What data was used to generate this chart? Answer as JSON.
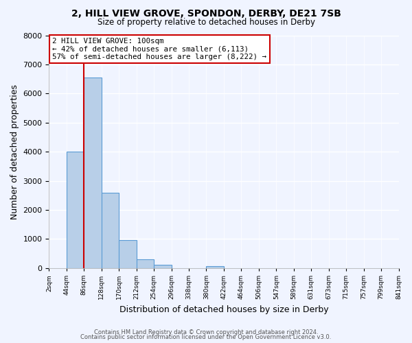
{
  "title1": "2, HILL VIEW GROVE, SPONDON, DERBY, DE21 7SB",
  "title2": "Size of property relative to detached houses in Derby",
  "xlabel": "Distribution of detached houses by size in Derby",
  "ylabel": "Number of detached properties",
  "bar_values": [
    0,
    4000,
    6550,
    2600,
    950,
    310,
    110,
    0,
    0,
    70,
    0,
    0,
    0,
    0,
    0,
    0,
    0,
    0,
    0,
    0
  ],
  "bar_color": "#b8cfe8",
  "bar_edge_color": "#5b9bd5",
  "vline_x_bin": 2,
  "vline_color": "#cc0000",
  "annotation_text": "2 HILL VIEW GROVE: 100sqm\n← 42% of detached houses are smaller (6,113)\n57% of semi-detached houses are larger (8,222) →",
  "annotation_box_color": "#ffffff",
  "annotation_box_edge": "#cc0000",
  "ylim": [
    0,
    8000
  ],
  "background_color": "#f0f4ff",
  "footer1": "Contains HM Land Registry data © Crown copyright and database right 2024.",
  "footer2": "Contains public sector information licensed under the Open Government Licence v3.0.",
  "tick_labels": [
    "2sqm",
    "44sqm",
    "86sqm",
    "128sqm",
    "170sqm",
    "212sqm",
    "254sqm",
    "296sqm",
    "338sqm",
    "380sqm",
    "422sqm",
    "464sqm",
    "506sqm",
    "547sqm",
    "589sqm",
    "631sqm",
    "673sqm",
    "715sqm",
    "757sqm",
    "799sqm",
    "841sqm"
  ],
  "num_bins": 20
}
